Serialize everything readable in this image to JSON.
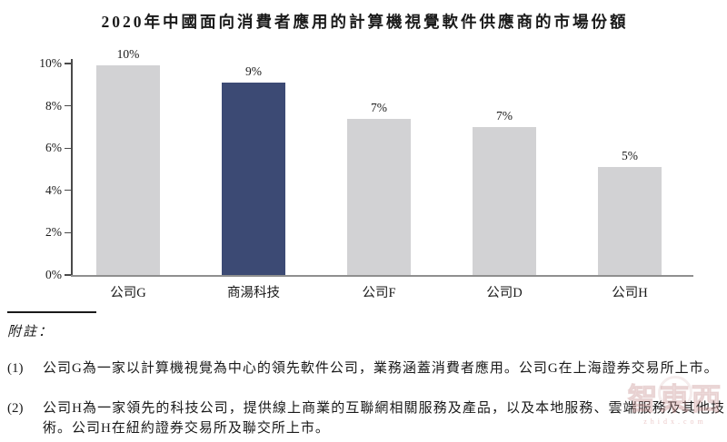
{
  "title": "2020年中國面向消費者應用的計算機視覺軟件供應商的市場份額",
  "chart_data": {
    "type": "bar",
    "title": "2020年中國面向消費者應用的計算機視覺軟件供應商的市場份額",
    "categories": [
      "公司G",
      "商湯科技",
      "公司F",
      "公司D",
      "公司H"
    ],
    "values": [
      10,
      9,
      7,
      7,
      5
    ],
    "value_labels": [
      "10%",
      "9%",
      "7%",
      "7%",
      "5%"
    ],
    "plotted_values": [
      9.9,
      9.1,
      7.4,
      7.0,
      5.1
    ],
    "highlight_index": 1,
    "highlighted_category": "商湯科技",
    "ylim": [
      0,
      10
    ],
    "ytick_values": [
      0,
      2,
      4,
      6,
      8,
      10
    ],
    "ytick_labels": [
      "0%",
      "2%",
      "4%",
      "6%",
      "8%",
      "10%"
    ],
    "grid": false,
    "legend": "none",
    "bar_color": "#d2d2d4",
    "highlight_color": "#3c4a74",
    "axis_color": "#4a4a4a",
    "baseline_color": "#8f8f8f"
  },
  "notes": {
    "heading": "附註：",
    "items": [
      {
        "num": "(1)",
        "text": "公司G為一家以計算機視覺為中心的領先軟件公司，業務涵蓋消費者應用。公司G在上海證券交易所上市。"
      },
      {
        "num": "(2)",
        "text": "公司H為一家領先的科技公司，提供線上商業的互聯網相關服務及產品，以及本地服務、雲端服務及其他技術。公司H在紐約證券交易所及聯交所上市。"
      }
    ]
  },
  "watermark": {
    "logo_text": "智東西",
    "domain_text": "zhidx.com"
  }
}
